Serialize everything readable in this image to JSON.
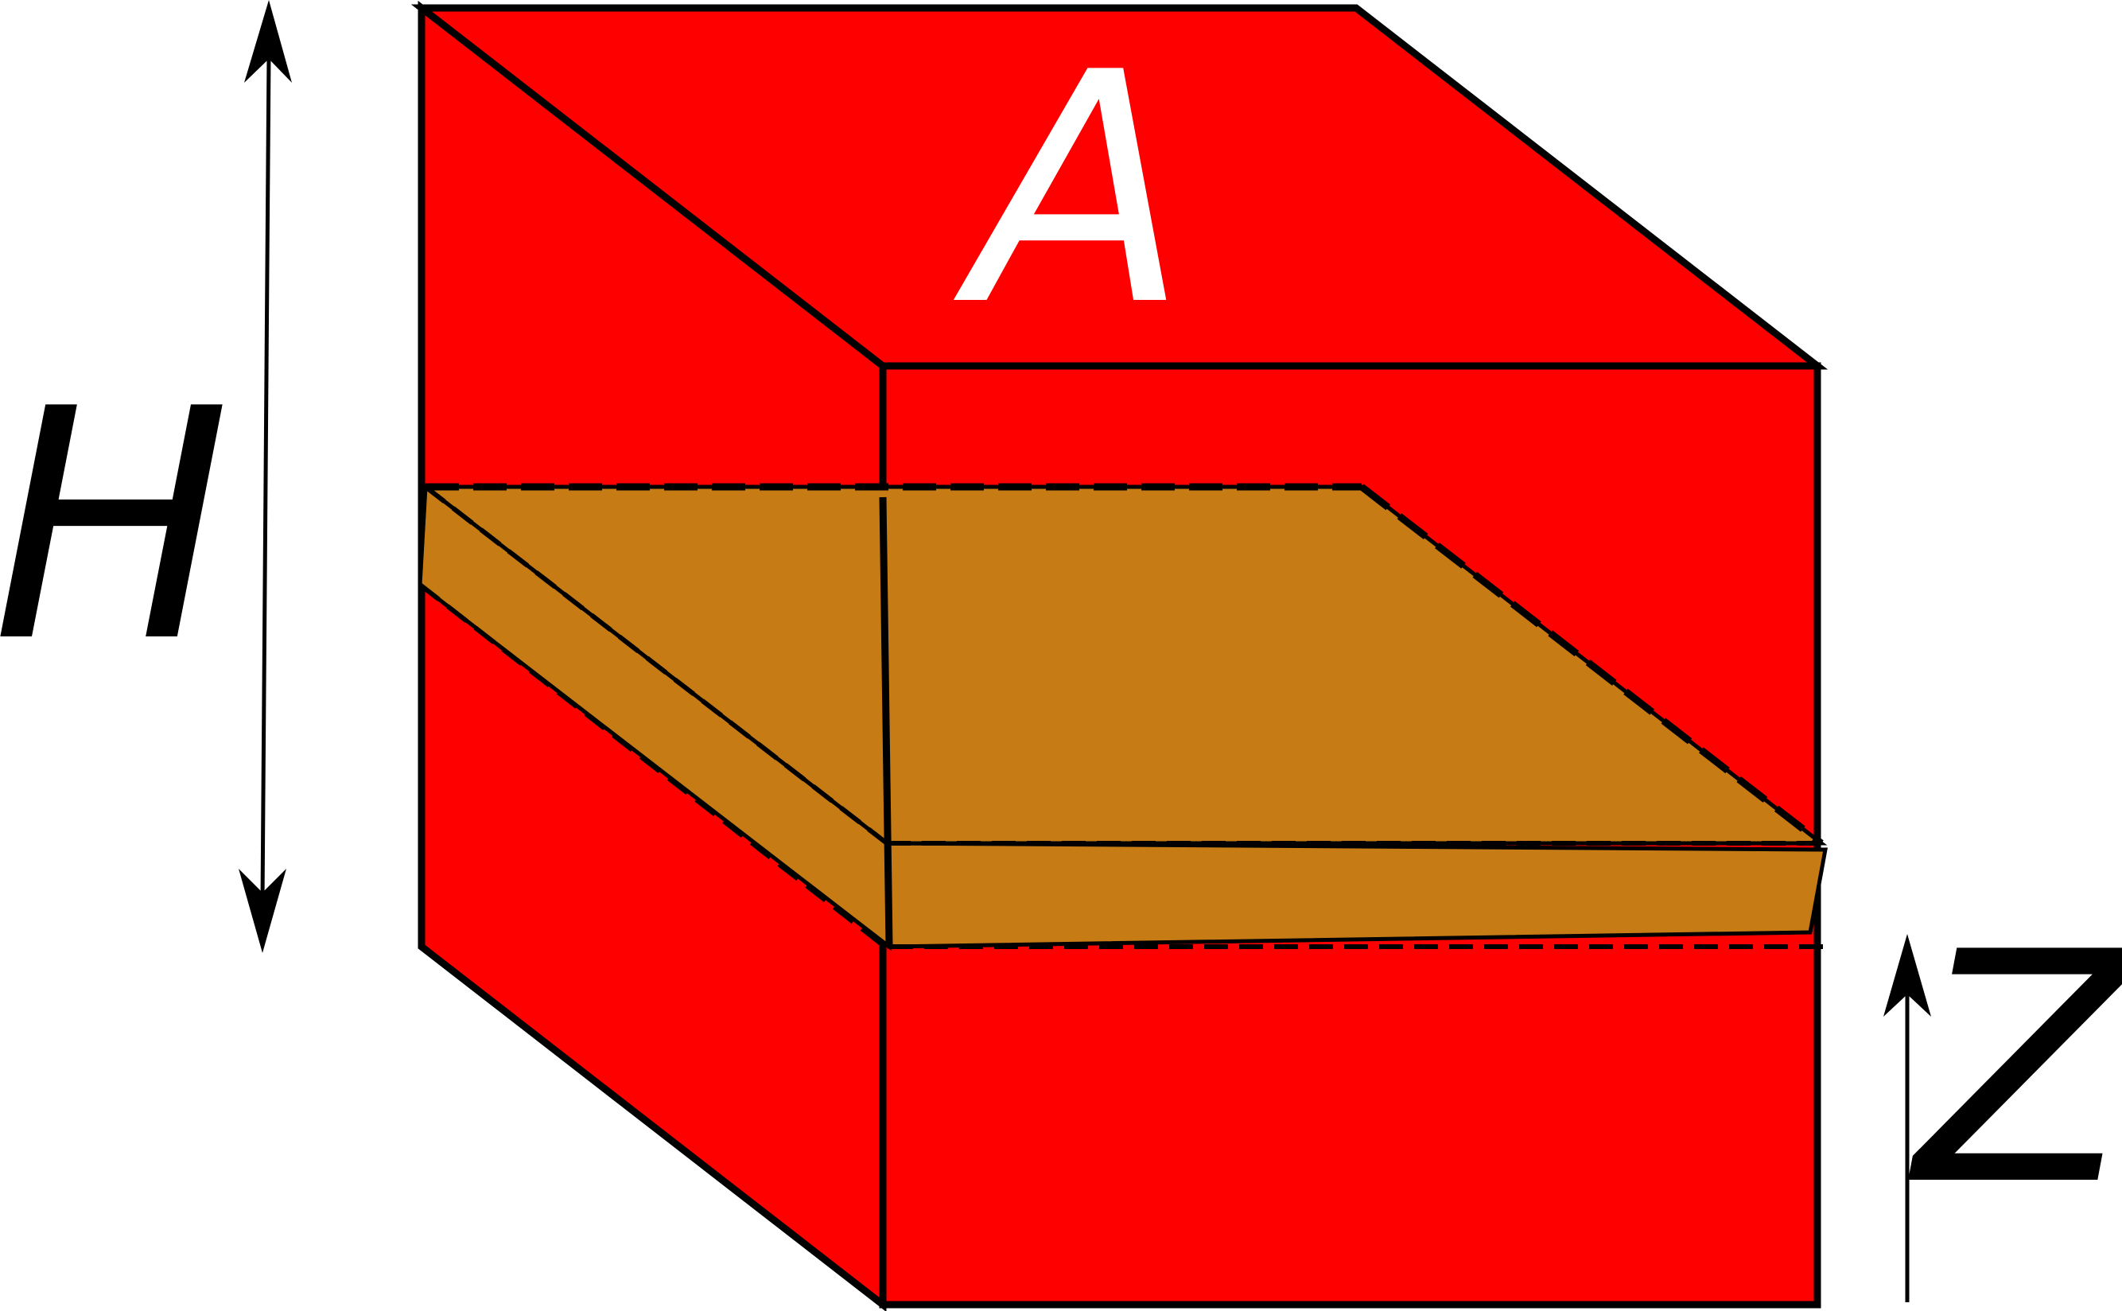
{
  "labels": {
    "top_face": "A",
    "height": "H",
    "axis": "Z"
  },
  "colors": {
    "block": "#ff0000",
    "layer": "#c77b14",
    "outline": "#000000",
    "label_on_block": "#ffffff",
    "label": "#000000"
  }
}
